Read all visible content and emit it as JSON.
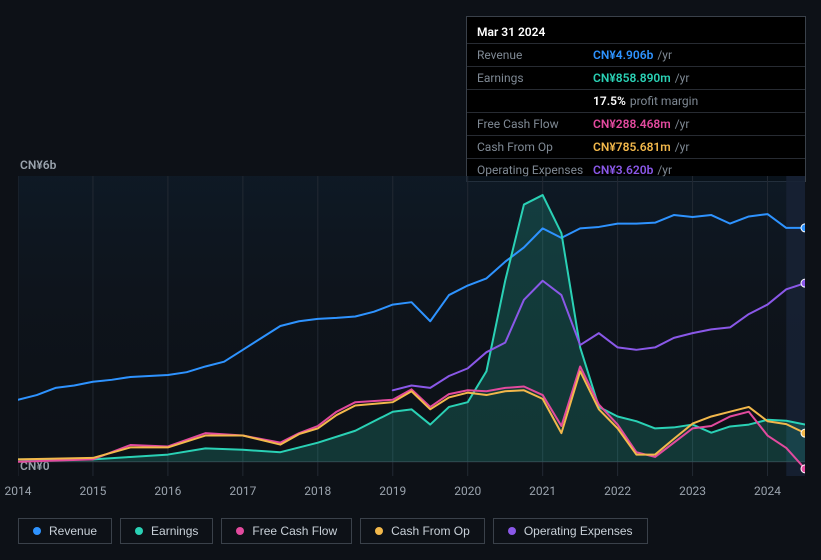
{
  "tooltip": {
    "date": "Mar 31 2024",
    "rows": [
      {
        "label": "Revenue",
        "value": "CN¥4.906b",
        "per": "/yr",
        "color": "#2e93ff"
      },
      {
        "label": "Earnings",
        "value": "CN¥858.890m",
        "per": "/yr",
        "color": "#2ad1b5"
      },
      {
        "label": "",
        "value": "17.5%",
        "per": "profit margin",
        "color": "#ffffff"
      },
      {
        "label": "Free Cash Flow",
        "value": "CN¥288.468m",
        "per": "/yr",
        "color": "#e24a9e"
      },
      {
        "label": "Cash From Op",
        "value": "CN¥785.681m",
        "per": "/yr",
        "color": "#f2b84b"
      },
      {
        "label": "Operating Expenses",
        "value": "CN¥3.620b",
        "per": "/yr",
        "color": "#8a58e8"
      }
    ]
  },
  "y_axis": {
    "top_label": "CN¥6b",
    "bottom_label": "CN¥0"
  },
  "x_axis": {
    "min": 2014,
    "max": 2024.5,
    "ticks": [
      2014,
      2015,
      2016,
      2017,
      2018,
      2019,
      2020,
      2021,
      2022,
      2023,
      2024
    ]
  },
  "chart": {
    "background_color": "#0d1117",
    "gradient_from": "#10203090",
    "gradient_to": "#0d111700",
    "future_band_from": 2024.25,
    "grid_color": "#222933",
    "y_min": -0.3,
    "y_max": 6.0
  },
  "series": [
    {
      "name": "Revenue",
      "color": "#2e93ff",
      "line_width": 2,
      "fill_opacity": 0,
      "marker_end": true,
      "xy": [
        [
          2014.0,
          1.3
        ],
        [
          2014.25,
          1.4
        ],
        [
          2014.5,
          1.55
        ],
        [
          2014.75,
          1.6
        ],
        [
          2015.0,
          1.68
        ],
        [
          2015.25,
          1.72
        ],
        [
          2015.5,
          1.78
        ],
        [
          2015.75,
          1.8
        ],
        [
          2016.0,
          1.82
        ],
        [
          2016.25,
          1.88
        ],
        [
          2016.5,
          2.0
        ],
        [
          2016.75,
          2.1
        ],
        [
          2017.0,
          2.35
        ],
        [
          2017.25,
          2.6
        ],
        [
          2017.5,
          2.85
        ],
        [
          2017.75,
          2.95
        ],
        [
          2018.0,
          3.0
        ],
        [
          2018.25,
          3.02
        ],
        [
          2018.5,
          3.05
        ],
        [
          2018.75,
          3.15
        ],
        [
          2019.0,
          3.3
        ],
        [
          2019.25,
          3.35
        ],
        [
          2019.5,
          2.95
        ],
        [
          2019.75,
          3.5
        ],
        [
          2020.0,
          3.7
        ],
        [
          2020.25,
          3.85
        ],
        [
          2020.5,
          4.2
        ],
        [
          2020.75,
          4.5
        ],
        [
          2021.0,
          4.9
        ],
        [
          2021.25,
          4.7
        ],
        [
          2021.5,
          4.9
        ],
        [
          2021.75,
          4.93
        ],
        [
          2022.0,
          5.0
        ],
        [
          2022.25,
          5.0
        ],
        [
          2022.5,
          5.02
        ],
        [
          2022.75,
          5.18
        ],
        [
          2023.0,
          5.14
        ],
        [
          2023.25,
          5.18
        ],
        [
          2023.5,
          5.0
        ],
        [
          2023.75,
          5.15
        ],
        [
          2024.0,
          5.2
        ],
        [
          2024.25,
          4.91
        ],
        [
          2024.5,
          4.91
        ]
      ]
    },
    {
      "name": "Earnings",
      "color": "#2ad1b5",
      "line_width": 2,
      "fill_opacity": 0.2,
      "marker_end": false,
      "xy": [
        [
          2014.0,
          0.05
        ],
        [
          2015.0,
          0.05
        ],
        [
          2015.5,
          0.1
        ],
        [
          2016.0,
          0.15
        ],
        [
          2016.5,
          0.28
        ],
        [
          2017.0,
          0.25
        ],
        [
          2017.5,
          0.2
        ],
        [
          2018.0,
          0.4
        ],
        [
          2018.5,
          0.65
        ],
        [
          2019.0,
          1.05
        ],
        [
          2019.25,
          1.1
        ],
        [
          2019.5,
          0.78
        ],
        [
          2019.75,
          1.15
        ],
        [
          2020.0,
          1.25
        ],
        [
          2020.25,
          1.9
        ],
        [
          2020.5,
          3.8
        ],
        [
          2020.75,
          5.4
        ],
        [
          2021.0,
          5.6
        ],
        [
          2021.25,
          4.8
        ],
        [
          2021.5,
          2.4
        ],
        [
          2021.75,
          1.15
        ],
        [
          2022.0,
          0.95
        ],
        [
          2022.25,
          0.85
        ],
        [
          2022.5,
          0.7
        ],
        [
          2022.75,
          0.72
        ],
        [
          2023.0,
          0.78
        ],
        [
          2023.25,
          0.61
        ],
        [
          2023.5,
          0.74
        ],
        [
          2023.75,
          0.78
        ],
        [
          2024.0,
          0.88
        ],
        [
          2024.25,
          0.86
        ],
        [
          2024.5,
          0.78
        ]
      ]
    },
    {
      "name": "Free Cash Flow",
      "color": "#e24a9e",
      "line_width": 2,
      "fill_opacity": 0,
      "marker_end": true,
      "xy": [
        [
          2014.0,
          0.0
        ],
        [
          2015.0,
          0.05
        ],
        [
          2015.5,
          0.35
        ],
        [
          2016.0,
          0.32
        ],
        [
          2016.5,
          0.6
        ],
        [
          2017.0,
          0.55
        ],
        [
          2017.5,
          0.4
        ],
        [
          2017.75,
          0.6
        ],
        [
          2018.0,
          0.75
        ],
        [
          2018.25,
          1.05
        ],
        [
          2018.5,
          1.25
        ],
        [
          2019.0,
          1.3
        ],
        [
          2019.25,
          1.52
        ],
        [
          2019.5,
          1.15
        ],
        [
          2019.75,
          1.42
        ],
        [
          2020.0,
          1.5
        ],
        [
          2020.25,
          1.48
        ],
        [
          2020.5,
          1.55
        ],
        [
          2020.75,
          1.58
        ],
        [
          2021.0,
          1.4
        ],
        [
          2021.25,
          0.75
        ],
        [
          2021.5,
          2.0
        ],
        [
          2021.75,
          1.2
        ],
        [
          2022.0,
          0.78
        ],
        [
          2022.25,
          0.2
        ],
        [
          2022.5,
          0.1
        ],
        [
          2022.75,
          0.4
        ],
        [
          2023.0,
          0.7
        ],
        [
          2023.25,
          0.75
        ],
        [
          2023.5,
          0.95
        ],
        [
          2023.75,
          1.05
        ],
        [
          2024.0,
          0.55
        ],
        [
          2024.25,
          0.29
        ],
        [
          2024.5,
          -0.15
        ]
      ]
    },
    {
      "name": "Cash From Op",
      "color": "#f2b84b",
      "line_width": 2,
      "fill_opacity": 0,
      "marker_end": true,
      "xy": [
        [
          2014.0,
          0.05
        ],
        [
          2015.0,
          0.08
        ],
        [
          2015.5,
          0.3
        ],
        [
          2016.0,
          0.3
        ],
        [
          2016.5,
          0.55
        ],
        [
          2017.0,
          0.55
        ],
        [
          2017.5,
          0.36
        ],
        [
          2017.75,
          0.58
        ],
        [
          2018.0,
          0.7
        ],
        [
          2018.25,
          0.98
        ],
        [
          2018.5,
          1.18
        ],
        [
          2019.0,
          1.25
        ],
        [
          2019.25,
          1.48
        ],
        [
          2019.5,
          1.1
        ],
        [
          2019.75,
          1.35
        ],
        [
          2020.0,
          1.45
        ],
        [
          2020.25,
          1.4
        ],
        [
          2020.5,
          1.48
        ],
        [
          2020.75,
          1.5
        ],
        [
          2021.0,
          1.32
        ],
        [
          2021.25,
          0.6
        ],
        [
          2021.5,
          1.9
        ],
        [
          2021.75,
          1.1
        ],
        [
          2022.0,
          0.7
        ],
        [
          2022.25,
          0.15
        ],
        [
          2022.5,
          0.15
        ],
        [
          2022.75,
          0.48
        ],
        [
          2023.0,
          0.8
        ],
        [
          2023.25,
          0.95
        ],
        [
          2023.5,
          1.05
        ],
        [
          2023.75,
          1.15
        ],
        [
          2024.0,
          0.85
        ],
        [
          2024.25,
          0.79
        ],
        [
          2024.5,
          0.6
        ]
      ]
    },
    {
      "name": "Operating Expenses",
      "color": "#8a58e8",
      "line_width": 2,
      "fill_opacity": 0,
      "marker_end": true,
      "xy": [
        [
          2019.0,
          1.5
        ],
        [
          2019.25,
          1.6
        ],
        [
          2019.5,
          1.55
        ],
        [
          2019.75,
          1.8
        ],
        [
          2020.0,
          1.96
        ],
        [
          2020.25,
          2.3
        ],
        [
          2020.5,
          2.5
        ],
        [
          2020.75,
          3.4
        ],
        [
          2021.0,
          3.8
        ],
        [
          2021.25,
          3.5
        ],
        [
          2021.5,
          2.45
        ],
        [
          2021.75,
          2.7
        ],
        [
          2022.0,
          2.4
        ],
        [
          2022.25,
          2.35
        ],
        [
          2022.5,
          2.4
        ],
        [
          2022.75,
          2.6
        ],
        [
          2023.0,
          2.7
        ],
        [
          2023.25,
          2.78
        ],
        [
          2023.5,
          2.82
        ],
        [
          2023.75,
          3.1
        ],
        [
          2024.0,
          3.3
        ],
        [
          2024.25,
          3.62
        ],
        [
          2024.5,
          3.75
        ]
      ]
    }
  ],
  "legend": [
    {
      "label": "Revenue",
      "color": "#2e93ff"
    },
    {
      "label": "Earnings",
      "color": "#2ad1b5"
    },
    {
      "label": "Free Cash Flow",
      "color": "#e24a9e"
    },
    {
      "label": "Cash From Op",
      "color": "#f2b84b"
    },
    {
      "label": "Operating Expenses",
      "color": "#8a58e8"
    }
  ]
}
